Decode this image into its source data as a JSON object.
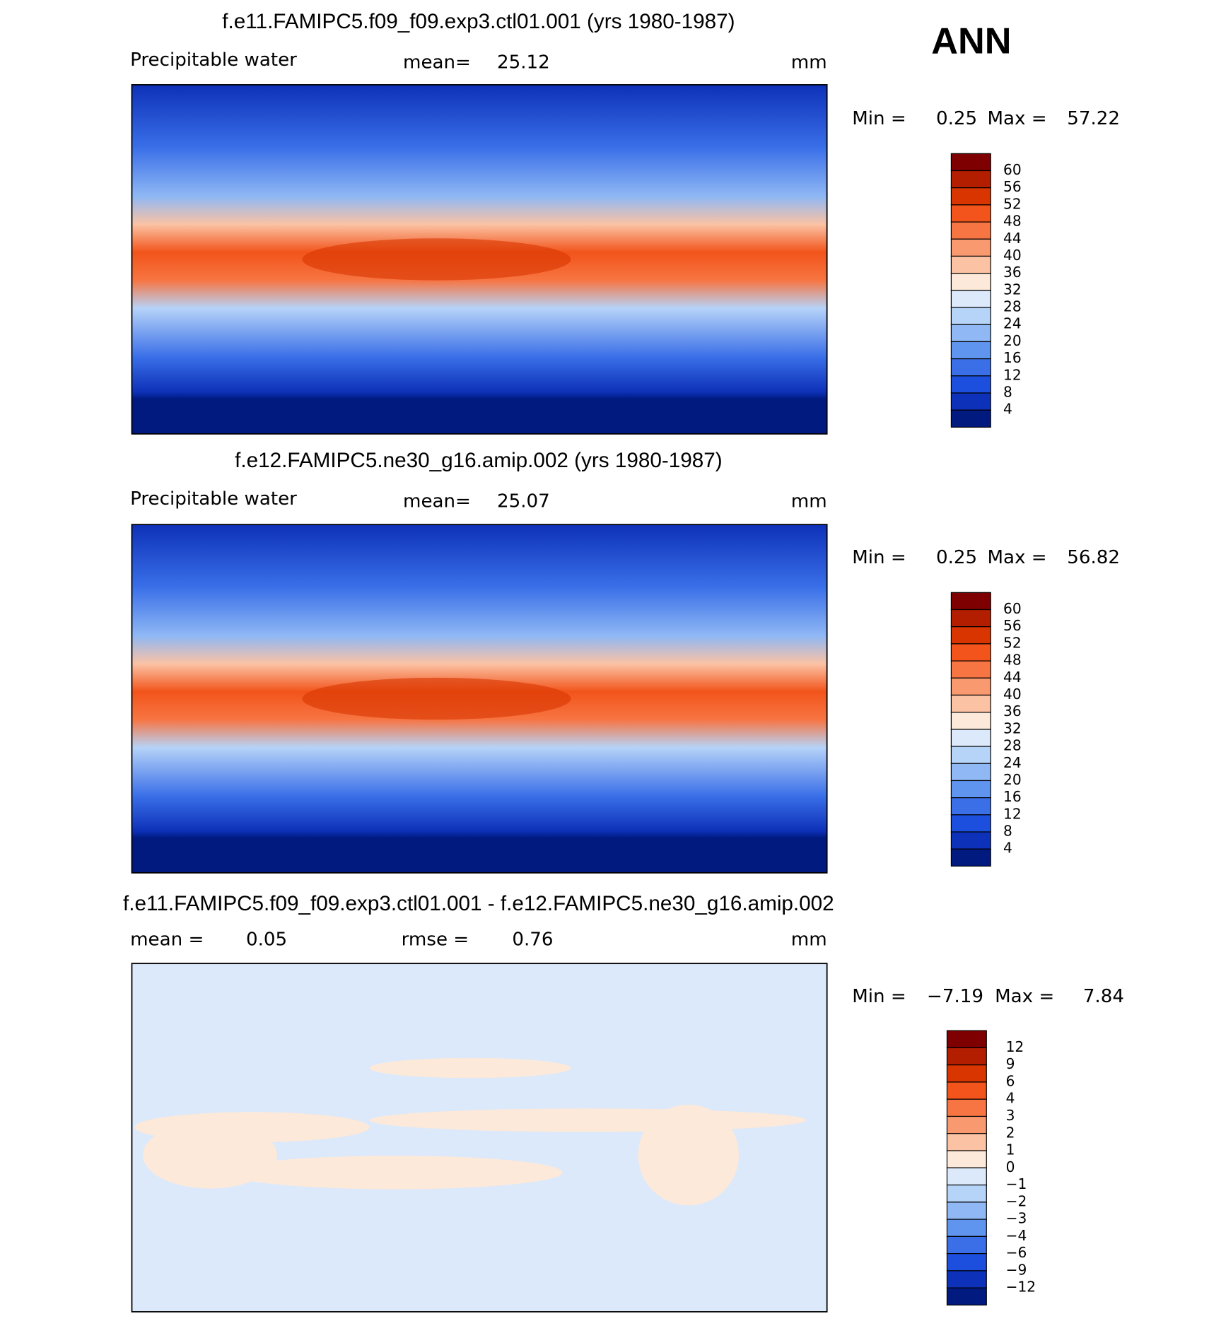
{
  "label": "ANN",
  "panels": [
    {
      "title": "f.e11.FAMIPC5.f09_f09.exp3.ctl01.001 (yrs 1980-1987)",
      "subtitle": "Precipitable water",
      "mean_label": "mean=",
      "mean": 25.12,
      "units": "mm",
      "min_label": "Min =",
      "min": 0.25,
      "max_label": "Max =",
      "max": 57.22,
      "colorbar": {
        "labels": [
          60,
          56,
          52,
          48,
          44,
          40,
          36,
          32,
          28,
          24,
          20,
          16,
          12,
          8,
          4
        ],
        "colors": [
          "#7f0000",
          "#b31d00",
          "#d93500",
          "#f2541b",
          "#f77542",
          "#f9996f",
          "#fbc2a4",
          "#fde9d9",
          "#dbe9fb",
          "#b6d3f8",
          "#8fb8f4",
          "#5f95ef",
          "#3a6fe8",
          "#1c4fdd",
          "#0d31b8",
          "#001a80"
        ]
      }
    },
    {
      "title": "f.e12.FAMIPC5.ne30_g16.amip.002 (yrs 1980-1987)",
      "subtitle": "Precipitable water",
      "mean_label": "mean=",
      "mean": 25.07,
      "units": "mm",
      "min_label": "Min =",
      "min": 0.25,
      "max_label": "Max =",
      "max": 56.82,
      "colorbar": {
        "labels": [
          60,
          56,
          52,
          48,
          44,
          40,
          36,
          32,
          28,
          24,
          20,
          16,
          12,
          8,
          4
        ],
        "colors": [
          "#7f0000",
          "#b31d00",
          "#d93500",
          "#f2541b",
          "#f77542",
          "#f9996f",
          "#fbc2a4",
          "#fde9d9",
          "#dbe9fb",
          "#b6d3f8",
          "#8fb8f4",
          "#5f95ef",
          "#3a6fe8",
          "#1c4fdd",
          "#0d31b8",
          "#001a80"
        ]
      }
    },
    {
      "title": "f.e11.FAMIPC5.f09_f09.exp3.ctl01.001 - f.e12.FAMIPC5.ne30_g16.amip.002",
      "mean_label": "mean =",
      "mean": 0.05,
      "rmse_label": "rmse =",
      "rmse": 0.76,
      "units": "mm",
      "min_label": "Min =",
      "min": "−7.19",
      "max_label": "Max =",
      "max": 7.84,
      "colorbar": {
        "labels": [
          12,
          9,
          6,
          4,
          3,
          2,
          1,
          0,
          "−1",
          "−2",
          "−3",
          "−4",
          "−6",
          "−9",
          "−12"
        ],
        "colors": [
          "#7f0000",
          "#b31d00",
          "#d93500",
          "#f2541b",
          "#f77542",
          "#f9996f",
          "#fbc2a4",
          "#fde9d9",
          "#dbe9fb",
          "#b6d3f8",
          "#8fb8f4",
          "#5f95ef",
          "#3a6fe8",
          "#1c4fdd",
          "#0d31b8",
          "#001a80"
        ]
      }
    }
  ]
}
